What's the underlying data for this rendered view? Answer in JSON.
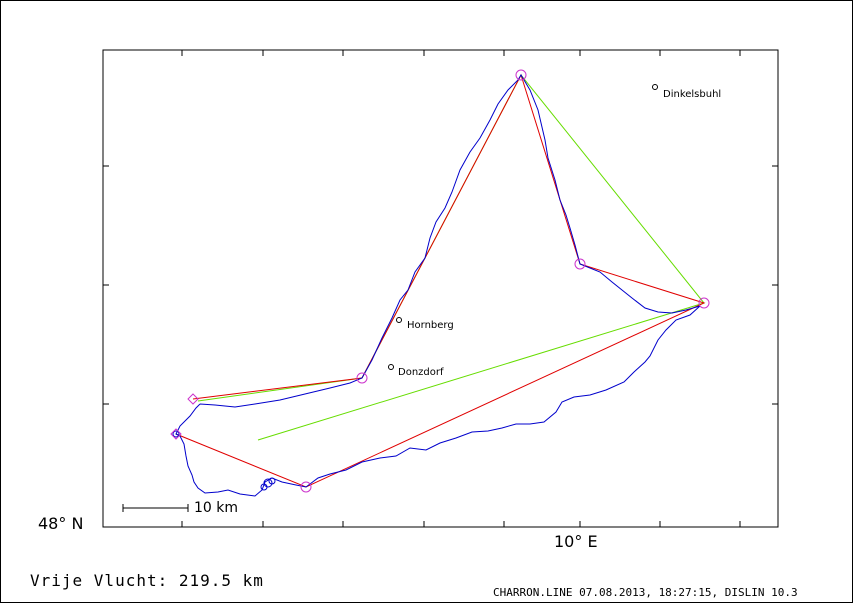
{
  "map": {
    "lat_label": "48° N",
    "lon_label": "10° E",
    "scale_label": "10 km",
    "towns": [
      {
        "name": "Dinkelsbuhl"
      },
      {
        "name": "Hornberg"
      },
      {
        "name": "Donzdorf"
      }
    ]
  },
  "flight": {
    "summary": "Vrije Vlucht:  219.5 km"
  },
  "footer": {
    "text": "CHARRON.LINE 07.08.2013, 18:27:15, DISLIN 10.3"
  },
  "colors": {
    "track": "#0000cc",
    "route_red": "#e00000",
    "route_green": "#66dd00",
    "turnpoint": "#cc33cc",
    "frame": "#000000"
  }
}
